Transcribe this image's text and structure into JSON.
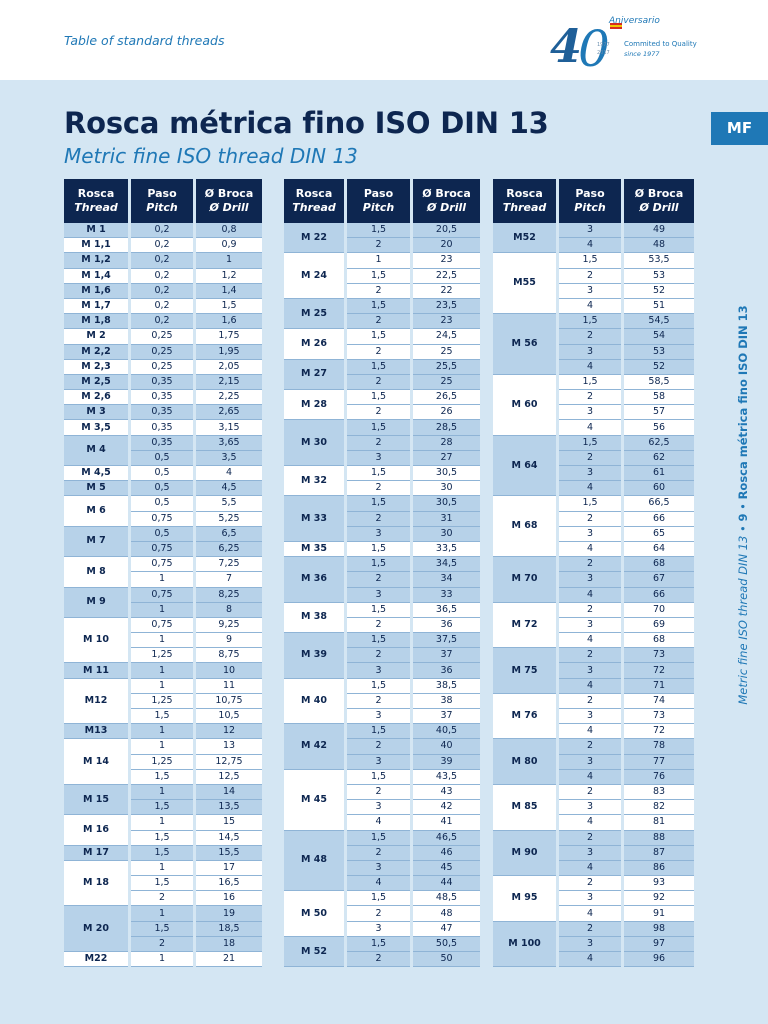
{
  "header": {
    "subtitle": "Table of standard threads",
    "logo": {
      "anniversary": "Aniversario",
      "number": "40",
      "tagline1": "Commited to Quality",
      "tagline2": "since 1977",
      "year1": "1977",
      "year2": "2017"
    }
  },
  "title": "Rosca métrica fino ISO DIN 13",
  "subtitle": "Metric fine ISO thread DIN 13",
  "tab": "MF",
  "side_text": {
    "en": "Metric fine ISO thread DIN 13",
    "page": "9",
    "es": "Rosca métrica fino ISO DIN 13",
    "bullet": "•"
  },
  "columns": [
    {
      "es": "Rosca",
      "en": "Thread"
    },
    {
      "es": "Paso",
      "en": "Pitch"
    },
    {
      "es": "Ø Broca",
      "en": "Ø Drill"
    }
  ],
  "tables": [
    {
      "groups": [
        {
          "size": "M 1",
          "rows": [
            [
              "0,2",
              "0,8"
            ]
          ]
        },
        {
          "size": "M 1,1",
          "rows": [
            [
              "0,2",
              "0,9"
            ]
          ]
        },
        {
          "size": "M 1,2",
          "rows": [
            [
              "0,2",
              "1"
            ]
          ]
        },
        {
          "size": "M 1,4",
          "rows": [
            [
              "0,2",
              "1,2"
            ]
          ]
        },
        {
          "size": "M 1,6",
          "rows": [
            [
              "0,2",
              "1,4"
            ]
          ]
        },
        {
          "size": "M 1,7",
          "rows": [
            [
              "0,2",
              "1,5"
            ]
          ]
        },
        {
          "size": "M 1,8",
          "rows": [
            [
              "0,2",
              "1,6"
            ]
          ]
        },
        {
          "size": "M 2",
          "rows": [
            [
              "0,25",
              "1,75"
            ]
          ]
        },
        {
          "size": "M 2,2",
          "rows": [
            [
              "0,25",
              "1,95"
            ]
          ]
        },
        {
          "size": "M 2,3",
          "rows": [
            [
              "0,25",
              "2,05"
            ]
          ]
        },
        {
          "size": "M 2,5",
          "rows": [
            [
              "0,35",
              "2,15"
            ]
          ]
        },
        {
          "size": "M 2,6",
          "rows": [
            [
              "0,35",
              "2,25"
            ]
          ]
        },
        {
          "size": "M 3",
          "rows": [
            [
              "0,35",
              "2,65"
            ]
          ]
        },
        {
          "size": "M 3,5",
          "rows": [
            [
              "0,35",
              "3,15"
            ]
          ]
        },
        {
          "size": "M 4",
          "rows": [
            [
              "0,35",
              "3,65"
            ],
            [
              "0,5",
              "3,5"
            ]
          ]
        },
        {
          "size": "M 4,5",
          "rows": [
            [
              "0,5",
              "4"
            ]
          ]
        },
        {
          "size": "M 5",
          "rows": [
            [
              "0,5",
              "4,5"
            ]
          ]
        },
        {
          "size": "M 6",
          "rows": [
            [
              "0,5",
              "5,5"
            ],
            [
              "0,75",
              "5,25"
            ]
          ]
        },
        {
          "size": "M 7",
          "rows": [
            [
              "0,5",
              "6,5"
            ],
            [
              "0,75",
              "6,25"
            ]
          ]
        },
        {
          "size": "M 8",
          "rows": [
            [
              "0,75",
              "7,25"
            ],
            [
              "1",
              "7"
            ]
          ]
        },
        {
          "size": "M 9",
          "rows": [
            [
              "0,75",
              "8,25"
            ],
            [
              "1",
              "8"
            ]
          ]
        },
        {
          "size": "M 10",
          "rows": [
            [
              "0,75",
              "9,25"
            ],
            [
              "1",
              "9"
            ],
            [
              "1,25",
              "8,75"
            ]
          ]
        },
        {
          "size": "M 11",
          "rows": [
            [
              "1",
              "10"
            ]
          ]
        },
        {
          "size": "M12",
          "rows": [
            [
              "1",
              "11"
            ],
            [
              "1,25",
              "10,75"
            ],
            [
              "1,5",
              "10,5"
            ]
          ]
        },
        {
          "size": "M13",
          "rows": [
            [
              "1",
              "12"
            ]
          ]
        },
        {
          "size": "M 14",
          "rows": [
            [
              "1",
              "13"
            ],
            [
              "1,25",
              "12,75"
            ],
            [
              "1,5",
              "12,5"
            ]
          ]
        },
        {
          "size": "M 15",
          "rows": [
            [
              "1",
              "14"
            ],
            [
              "1,5",
              "13,5"
            ]
          ]
        },
        {
          "size": "M 16",
          "rows": [
            [
              "1",
              "15"
            ],
            [
              "1,5",
              "14,5"
            ]
          ]
        },
        {
          "size": "M 17",
          "rows": [
            [
              "1,5",
              "15,5"
            ]
          ]
        },
        {
          "size": "M 18",
          "rows": [
            [
              "1",
              "17"
            ],
            [
              "1,5",
              "16,5"
            ],
            [
              "2",
              "16"
            ]
          ]
        },
        {
          "size": "M 20",
          "rows": [
            [
              "1",
              "19"
            ],
            [
              "1,5",
              "18,5"
            ],
            [
              "2",
              "18"
            ]
          ]
        },
        {
          "size": "M22",
          "rows": [
            [
              "1",
              "21"
            ]
          ]
        }
      ]
    },
    {
      "groups": [
        {
          "size": "M 22",
          "rows": [
            [
              "1,5",
              "20,5"
            ],
            [
              "2",
              "20"
            ]
          ]
        },
        {
          "size": "M 24",
          "rows": [
            [
              "1",
              "23"
            ],
            [
              "1,5",
              "22,5"
            ],
            [
              "2",
              "22"
            ]
          ]
        },
        {
          "size": "M 25",
          "rows": [
            [
              "1,5",
              "23,5"
            ],
            [
              "2",
              "23"
            ]
          ]
        },
        {
          "size": "M 26",
          "rows": [
            [
              "1,5",
              "24,5"
            ],
            [
              "2",
              "25"
            ]
          ]
        },
        {
          "size": "M 27",
          "rows": [
            [
              "1,5",
              "25,5"
            ],
            [
              "2",
              "25"
            ]
          ]
        },
        {
          "size": "M 28",
          "rows": [
            [
              "1,5",
              "26,5"
            ],
            [
              "2",
              "26"
            ]
          ]
        },
        {
          "size": "M 30",
          "rows": [
            [
              "1,5",
              "28,5"
            ],
            [
              "2",
              "28"
            ],
            [
              "3",
              "27"
            ]
          ]
        },
        {
          "size": "M 32",
          "rows": [
            [
              "1,5",
              "30,5"
            ],
            [
              "2",
              "30"
            ]
          ]
        },
        {
          "size": "M 33",
          "rows": [
            [
              "1,5",
              "30,5"
            ],
            [
              "2",
              "31"
            ],
            [
              "3",
              "30"
            ]
          ]
        },
        {
          "size": "M 35",
          "rows": [
            [
              "1,5",
              "33,5"
            ]
          ]
        },
        {
          "size": "M 36",
          "rows": [
            [
              "1,5",
              "34,5"
            ],
            [
              "2",
              "34"
            ],
            [
              "3",
              "33"
            ]
          ]
        },
        {
          "size": "M 38",
          "rows": [
            [
              "1,5",
              "36,5"
            ],
            [
              "2",
              "36"
            ]
          ]
        },
        {
          "size": "M 39",
          "rows": [
            [
              "1,5",
              "37,5"
            ],
            [
              "2",
              "37"
            ],
            [
              "3",
              "36"
            ]
          ]
        },
        {
          "size": "M 40",
          "rows": [
            [
              "1,5",
              "38,5"
            ],
            [
              "2",
              "38"
            ],
            [
              "3",
              "37"
            ]
          ]
        },
        {
          "size": "M 42",
          "rows": [
            [
              "1,5",
              "40,5"
            ],
            [
              "2",
              "40"
            ],
            [
              "3",
              "39"
            ]
          ]
        },
        {
          "size": "M 45",
          "rows": [
            [
              "1,5",
              "43,5"
            ],
            [
              "2",
              "43"
            ],
            [
              "3",
              "42"
            ],
            [
              "4",
              "41"
            ]
          ]
        },
        {
          "size": "M 48",
          "rows": [
            [
              "1,5",
              "46,5"
            ],
            [
              "2",
              "46"
            ],
            [
              "3",
              "45"
            ],
            [
              "4",
              "44"
            ]
          ]
        },
        {
          "size": "M 50",
          "rows": [
            [
              "1,5",
              "48,5"
            ],
            [
              "2",
              "48"
            ],
            [
              "3",
              "47"
            ]
          ]
        },
        {
          "size": "M 52",
          "rows": [
            [
              "1,5",
              "50,5"
            ],
            [
              "2",
              "50"
            ]
          ]
        }
      ]
    },
    {
      "groups": [
        {
          "size": "M52",
          "rows": [
            [
              "3",
              "49"
            ],
            [
              "4",
              "48"
            ]
          ]
        },
        {
          "size": "M55",
          "rows": [
            [
              "1,5",
              "53,5"
            ],
            [
              "2",
              "53"
            ],
            [
              "3",
              "52"
            ],
            [
              "4",
              "51"
            ]
          ]
        },
        {
          "size": "M 56",
          "rows": [
            [
              "1,5",
              "54,5"
            ],
            [
              "2",
              "54"
            ],
            [
              "3",
              "53"
            ],
            [
              "4",
              "52"
            ]
          ]
        },
        {
          "size": "M 60",
          "rows": [
            [
              "1,5",
              "58,5"
            ],
            [
              "2",
              "58"
            ],
            [
              "3",
              "57"
            ],
            [
              "4",
              "56"
            ]
          ]
        },
        {
          "size": "M 64",
          "rows": [
            [
              "1,5",
              "62,5"
            ],
            [
              "2",
              "62"
            ],
            [
              "3",
              "61"
            ],
            [
              "4",
              "60"
            ]
          ]
        },
        {
          "size": "M 68",
          "rows": [
            [
              "1,5",
              "66,5"
            ],
            [
              "2",
              "66"
            ],
            [
              "3",
              "65"
            ],
            [
              "4",
              "64"
            ]
          ]
        },
        {
          "size": "M 70",
          "rows": [
            [
              "2",
              "68"
            ],
            [
              "3",
              "67"
            ],
            [
              "4",
              "66"
            ]
          ]
        },
        {
          "size": "M 72",
          "rows": [
            [
              "2",
              "70"
            ],
            [
              "3",
              "69"
            ],
            [
              "4",
              "68"
            ]
          ]
        },
        {
          "size": "M 75",
          "rows": [
            [
              "2",
              "73"
            ],
            [
              "3",
              "72"
            ],
            [
              "4",
              "71"
            ]
          ]
        },
        {
          "size": "M 76",
          "rows": [
            [
              "2",
              "74"
            ],
            [
              "3",
              "73"
            ],
            [
              "4",
              "72"
            ]
          ]
        },
        {
          "size": "M 80",
          "rows": [
            [
              "2",
              "78"
            ],
            [
              "3",
              "77"
            ],
            [
              "4",
              "76"
            ]
          ]
        },
        {
          "size": "M 85",
          "rows": [
            [
              "2",
              "83"
            ],
            [
              "3",
              "82"
            ],
            [
              "4",
              "81"
            ]
          ]
        },
        {
          "size": "M 90",
          "rows": [
            [
              "2",
              "88"
            ],
            [
              "3",
              "87"
            ],
            [
              "4",
              "86"
            ]
          ]
        },
        {
          "size": "M 95",
          "rows": [
            [
              "2",
              "93"
            ],
            [
              "3",
              "92"
            ],
            [
              "4",
              "91"
            ]
          ]
        },
        {
          "size": "M 100",
          "rows": [
            [
              "2",
              "98"
            ],
            [
              "3",
              "97"
            ],
            [
              "4",
              "96"
            ]
          ]
        }
      ]
    }
  ]
}
